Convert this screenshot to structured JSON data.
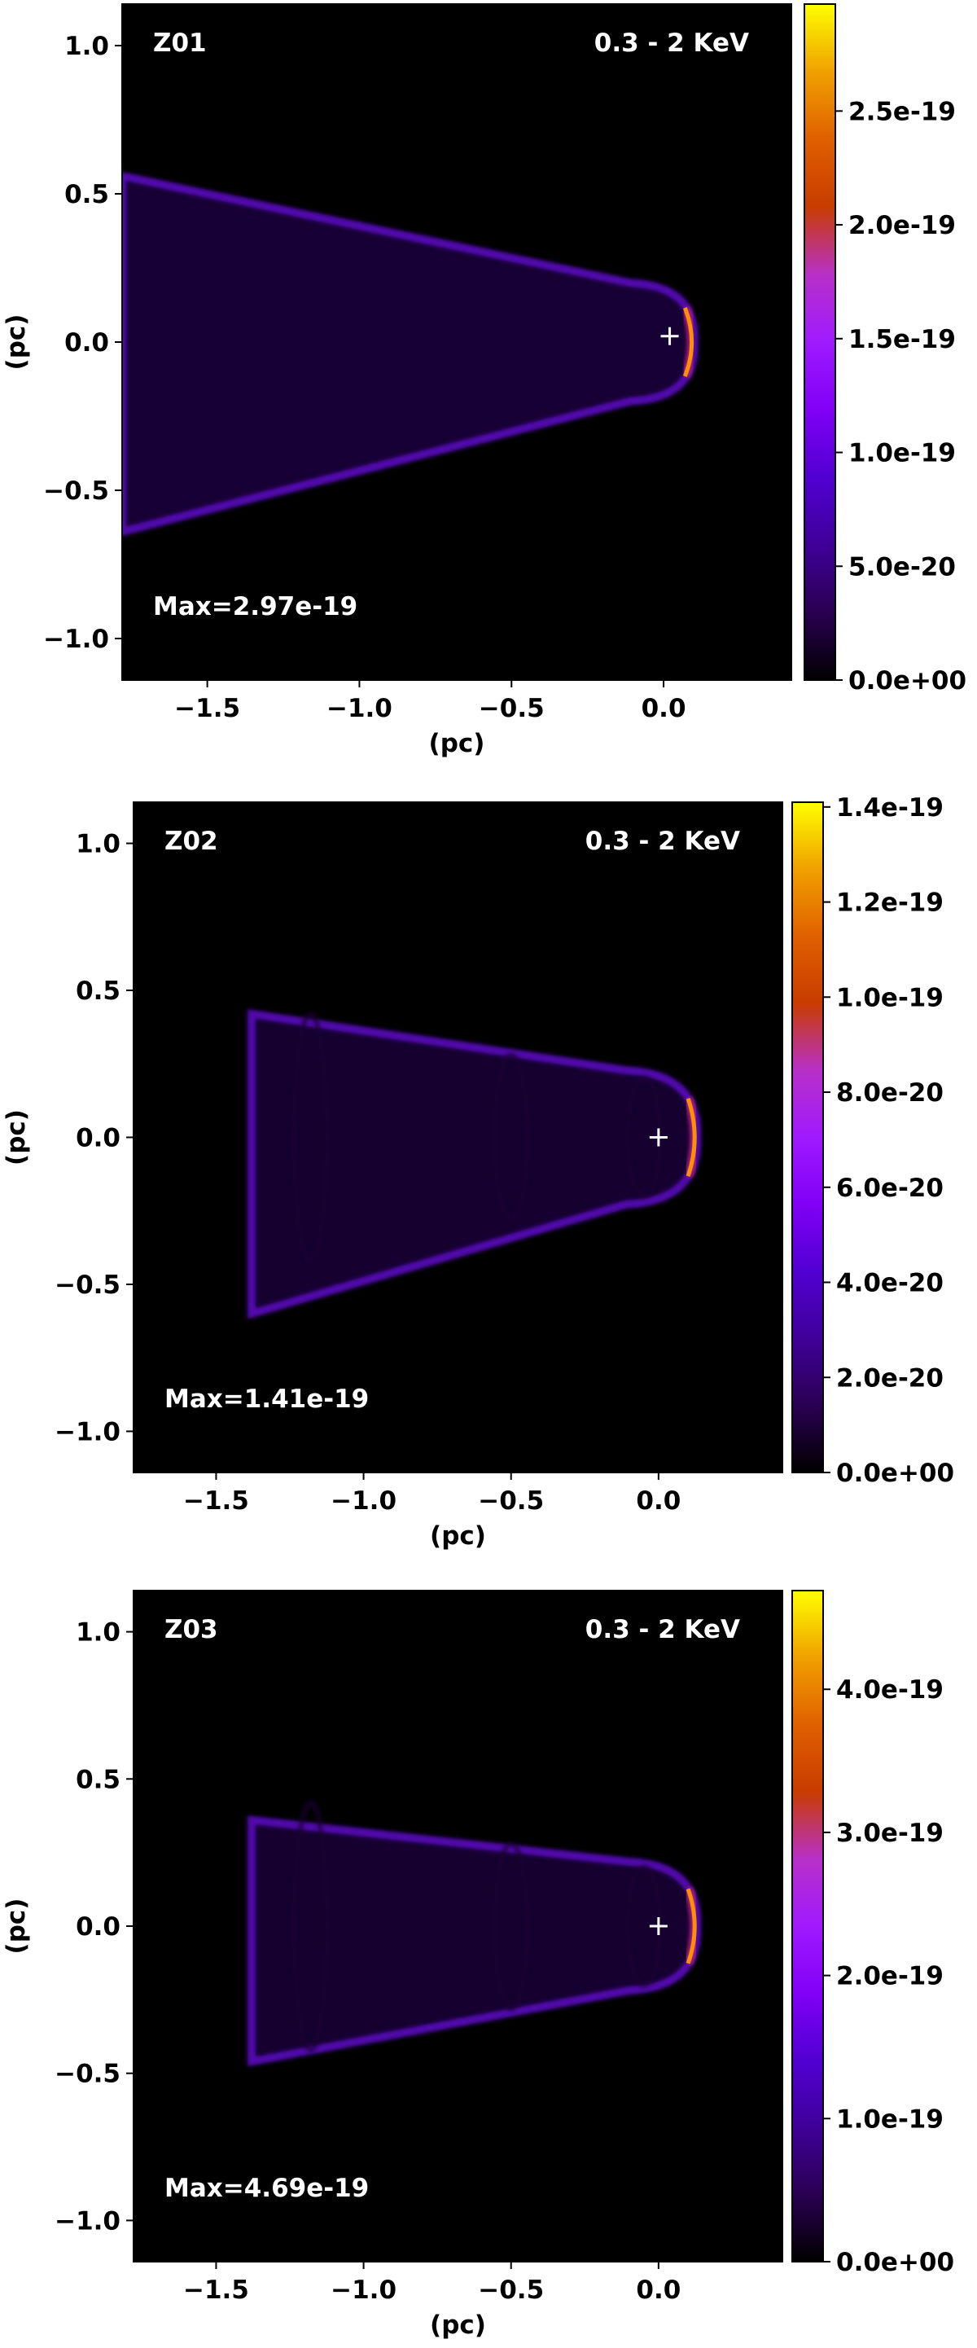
{
  "chart_data": [
    {
      "type": "heatmap",
      "panel_label": "Z01",
      "band_label": "0.3 - 2 KeV",
      "max_label": "Max=2.97e-19",
      "xlabel": "(pc)",
      "ylabel": "(pc)",
      "xlim": [
        -1.78,
        0.42
      ],
      "ylim": [
        -1.14,
        1.14
      ],
      "xticks": [
        -1.5,
        -1.0,
        -0.5,
        0.0
      ],
      "xtick_labels": [
        "−1.5",
        "−1.0",
        "−0.5",
        "0.0"
      ],
      "yticks": [
        1.0,
        0.5,
        0.0,
        -0.5,
        -1.0
      ],
      "ytick_labels": [
        "1.0",
        "0.5",
        "0.0",
        "−0.5",
        "−1.0"
      ],
      "marker": {
        "x": 0.02,
        "y": 0.02
      },
      "colorbar": {
        "colormap": "gnuplot",
        "vmin": 0.0,
        "vmax": 2.97e-19,
        "ticks": [
          0.0,
          5e-20,
          1e-19,
          1.5e-19,
          2e-19,
          2.5e-19
        ],
        "tick_labels": [
          "0.0e+00",
          "5.0e-20",
          "1.0e-19",
          "1.5e-19",
          "2.0e-19",
          "2.5e-19"
        ]
      }
    },
    {
      "type": "heatmap",
      "panel_label": "Z02",
      "band_label": "0.3 - 2 KeV",
      "max_label": "Max=1.41e-19",
      "xlabel": "(pc)",
      "ylabel": "(pc)",
      "xlim": [
        -1.78,
        0.42
      ],
      "ylim": [
        -1.14,
        1.14
      ],
      "xticks": [
        -1.5,
        -1.0,
        -0.5,
        0.0
      ],
      "xtick_labels": [
        "−1.5",
        "−1.0",
        "−0.5",
        "0.0"
      ],
      "yticks": [
        1.0,
        0.5,
        0.0,
        -0.5,
        -1.0
      ],
      "ytick_labels": [
        "1.0",
        "0.5",
        "0.0",
        "−0.5",
        "−1.0"
      ],
      "marker": {
        "x": 0.0,
        "y": 0.0
      },
      "colorbar": {
        "colormap": "gnuplot",
        "vmin": 0.0,
        "vmax": 1.41e-19,
        "ticks": [
          0.0,
          2e-20,
          4e-20,
          6e-20,
          8e-20,
          1e-19,
          1.2e-19,
          1.4e-19
        ],
        "tick_labels": [
          "0.0e+00",
          "2.0e-20",
          "4.0e-20",
          "6.0e-20",
          "8.0e-20",
          "1.0e-19",
          "1.2e-19",
          "1.4e-19"
        ]
      }
    },
    {
      "type": "heatmap",
      "panel_label": "Z03",
      "band_label": "0.3 - 2 KeV",
      "max_label": "Max=4.69e-19",
      "xlabel": "(pc)",
      "ylabel": "(pc)",
      "xlim": [
        -1.78,
        0.42
      ],
      "ylim": [
        -1.14,
        1.14
      ],
      "xticks": [
        -1.5,
        -1.0,
        -0.5,
        0.0
      ],
      "xtick_labels": [
        "−1.5",
        "−1.0",
        "−0.5",
        "0.0"
      ],
      "yticks": [
        1.0,
        0.5,
        0.0,
        -0.5,
        -1.0
      ],
      "ytick_labels": [
        "1.0",
        "0.5",
        "0.0",
        "−0.5",
        "−1.0"
      ],
      "marker": {
        "x": 0.0,
        "y": 0.0
      },
      "colorbar": {
        "colormap": "gnuplot",
        "vmin": 0.0,
        "vmax": 4.69e-19,
        "ticks": [
          0.0,
          1e-19,
          2e-19,
          3e-19,
          4e-19
        ],
        "tick_labels": [
          "0.0e+00",
          "1.0e-19",
          "2.0e-19",
          "3.0e-19",
          "4.0e-19"
        ]
      }
    }
  ]
}
